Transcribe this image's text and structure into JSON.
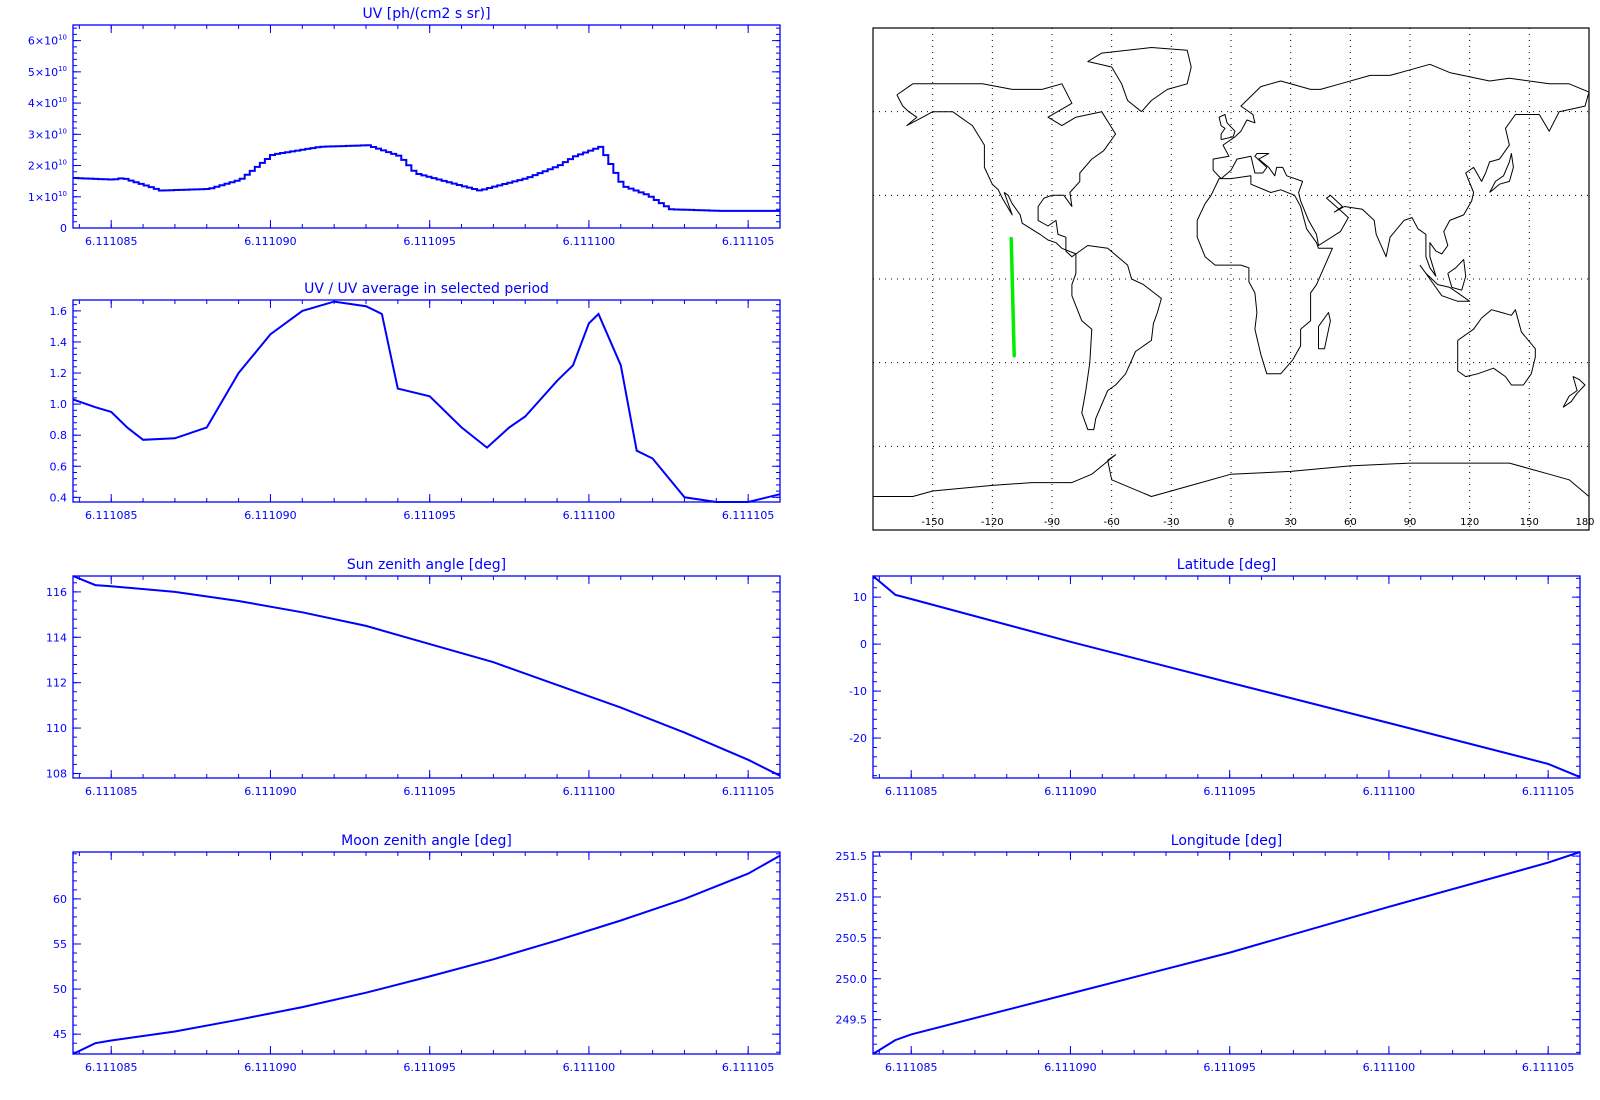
{
  "chart_data": [
    {
      "id": "uv",
      "type": "line",
      "style": "step",
      "title": "UV [ph/(cm2 s sr)]",
      "x_ticks": [
        "6.111085",
        "6.111090",
        "6.111095",
        "6.111100",
        "6.111105"
      ],
      "y_ticks": [
        {
          "mantissa": "0",
          "exp": ""
        },
        {
          "mantissa": "1×10",
          "exp": "10"
        },
        {
          "mantissa": "2×10",
          "exp": "10"
        },
        {
          "mantissa": "3×10",
          "exp": "10"
        },
        {
          "mantissa": "4×10",
          "exp": "10"
        },
        {
          "mantissa": "5×10",
          "exp": "10"
        },
        {
          "mantissa": "6×10",
          "exp": "10"
        }
      ],
      "xlim": [
        6.1110838,
        6.111106
      ],
      "ylim": [
        0,
        65000000000.0
      ],
      "x": [
        6.1110838,
        6.111085,
        6.1110853,
        6.1110865,
        6.111088,
        6.111089,
        6.11109,
        6.1110915,
        6.111093,
        6.111094,
        6.1110945,
        6.1110965,
        6.111098,
        6.111099,
        6.1110995,
        6.1111003,
        6.111101,
        6.1111018,
        6.1111025,
        6.111104,
        6.111106
      ],
      "y": [
        16000000000.0,
        15500000000.0,
        16000000000.0,
        12000000000.0,
        12500000000.0,
        15500000000.0,
        23500000000.0,
        26000000000.0,
        26500000000.0,
        23000000000.0,
        17500000000.0,
        12000000000.0,
        16000000000.0,
        20000000000.0,
        23000000000.0,
        26000000000.0,
        13500000000.0,
        10500000000.0,
        6000000000.0,
        5500000000.0,
        5500000000.0
      ]
    },
    {
      "id": "uv_ratio",
      "type": "line",
      "title": "UV / UV average in selected period",
      "x_ticks": [
        "6.111085",
        "6.111090",
        "6.111095",
        "6.111100",
        "6.111105"
      ],
      "y_ticks": [
        "0.4",
        "0.6",
        "0.8",
        "1.0",
        "1.2",
        "1.4",
        "1.6"
      ],
      "y_tick_values": [
        0.4,
        0.6,
        0.8,
        1.0,
        1.2,
        1.4,
        1.6
      ],
      "xlim": [
        6.1110838,
        6.111106
      ],
      "ylim": [
        0.37,
        1.67
      ],
      "x": [
        6.1110838,
        6.1110845,
        6.111085,
        6.1110855,
        6.111086,
        6.111087,
        6.111088,
        6.111089,
        6.11109,
        6.111091,
        6.111092,
        6.111093,
        6.1110935,
        6.111094,
        6.111095,
        6.111096,
        6.1110968,
        6.1110975,
        6.111098,
        6.111099,
        6.1110995,
        6.1111,
        6.1111003,
        6.111101,
        6.1111015,
        6.111102,
        6.111103,
        6.111104,
        6.111105,
        6.111106
      ],
      "y": [
        1.03,
        0.98,
        0.95,
        0.85,
        0.77,
        0.78,
        0.85,
        1.2,
        1.45,
        1.6,
        1.66,
        1.63,
        1.58,
        1.1,
        1.05,
        0.85,
        0.72,
        0.85,
        0.92,
        1.15,
        1.25,
        1.52,
        1.58,
        1.25,
        0.7,
        0.65,
        0.4,
        0.37,
        0.37,
        0.42
      ]
    },
    {
      "id": "sun_zenith",
      "type": "line",
      "title": "Sun zenith angle [deg]",
      "x_ticks": [
        "6.111085",
        "6.111090",
        "6.111095",
        "6.111100",
        "6.111105"
      ],
      "y_ticks": [
        "108",
        "110",
        "112",
        "114",
        "116"
      ],
      "y_tick_values": [
        108,
        110,
        112,
        114,
        116
      ],
      "xlim": [
        6.1110838,
        6.111106
      ],
      "ylim": [
        107.8,
        116.7
      ],
      "x": [
        6.1110838,
        6.1110845,
        6.111085,
        6.111087,
        6.111089,
        6.111091,
        6.111093,
        6.111095,
        6.111097,
        6.111099,
        6.111101,
        6.111103,
        6.111105,
        6.111106
      ],
      "y": [
        116.7,
        116.3,
        116.25,
        116.0,
        115.6,
        115.1,
        114.5,
        113.7,
        112.9,
        111.9,
        110.9,
        109.8,
        108.6,
        107.9
      ]
    },
    {
      "id": "latitude",
      "type": "line",
      "title": "Latitude [deg]",
      "x_ticks": [
        "6.111085",
        "6.111090",
        "6.111095",
        "6.111100",
        "6.111105"
      ],
      "y_ticks": [
        "-20",
        "-10",
        "0",
        "10"
      ],
      "y_tick_values": [
        -20,
        -10,
        0,
        10
      ],
      "xlim": [
        6.1110838,
        6.111106
      ],
      "ylim": [
        -28.5,
        14.5
      ],
      "x": [
        6.1110838,
        6.1110845,
        6.111085,
        6.11109,
        6.111095,
        6.1111,
        6.111105,
        6.111106
      ],
      "y": [
        14.5,
        10.5,
        9.6,
        0.5,
        -8.2,
        -16.8,
        -25.5,
        -28.3
      ]
    },
    {
      "id": "moon_zenith",
      "type": "line",
      "title": "Moon zenith angle [deg]",
      "x_ticks": [
        "6.111085",
        "6.111090",
        "6.111095",
        "6.111100",
        "6.111105"
      ],
      "y_ticks": [
        "45",
        "50",
        "55",
        "60"
      ],
      "y_tick_values": [
        45,
        50,
        55,
        60
      ],
      "xlim": [
        6.1110838,
        6.111106
      ],
      "ylim": [
        42.8,
        65.2
      ],
      "x": [
        6.1110838,
        6.1110845,
        6.111085,
        6.111087,
        6.111089,
        6.111091,
        6.111093,
        6.111095,
        6.111097,
        6.111099,
        6.111101,
        6.111103,
        6.111105,
        6.111106
      ],
      "y": [
        42.8,
        44.0,
        44.3,
        45.3,
        46.6,
        48.0,
        49.6,
        51.4,
        53.3,
        55.4,
        57.6,
        60.0,
        62.8,
        64.8
      ]
    },
    {
      "id": "longitude",
      "type": "line",
      "title": "Longitude [deg]",
      "x_ticks": [
        "6.111085",
        "6.111090",
        "6.111095",
        "6.111100",
        "6.111105"
      ],
      "y_ticks": [
        "249.5",
        "250.0",
        "250.5",
        "251.0",
        "251.5"
      ],
      "y_tick_values": [
        249.5,
        250.0,
        250.5,
        251.0,
        251.5
      ],
      "xlim": [
        6.1110838,
        6.111106
      ],
      "ylim": [
        249.08,
        251.55
      ],
      "x": [
        6.1110838,
        6.1110845,
        6.111085,
        6.11109,
        6.111095,
        6.1111,
        6.111105,
        6.111106
      ],
      "y": [
        249.08,
        249.25,
        249.32,
        249.82,
        250.32,
        250.88,
        251.42,
        251.55
      ]
    }
  ],
  "map": {
    "x_ticks": [
      "-150",
      "-120",
      "-90",
      "-60",
      "-30",
      "0",
      "30",
      "60",
      "90",
      "120",
      "150",
      "180"
    ],
    "track_color": "#00ee00",
    "track": [
      [
        -110.5,
        14.5
      ],
      [
        -109.0,
        -27.5
      ]
    ]
  }
}
